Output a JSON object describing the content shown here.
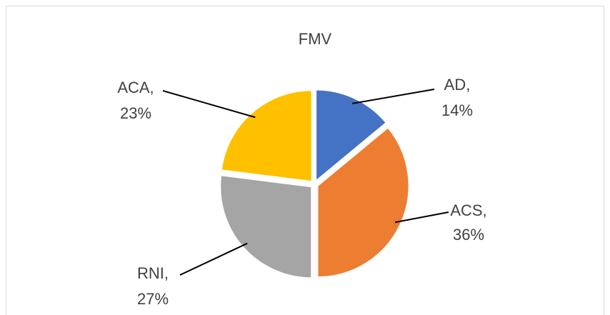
{
  "chart_data": {
    "type": "pie",
    "title": "FMV",
    "categories": [
      "AD,",
      "ACS,",
      "RNI,",
      "ACA,"
    ],
    "values": [
      14,
      36,
      27,
      23
    ],
    "value_labels": [
      "14%",
      "36%",
      "27%",
      "23%"
    ],
    "colors": [
      "#4472c4",
      "#ed7d31",
      "#a5a5a5",
      "#ffc000"
    ]
  }
}
